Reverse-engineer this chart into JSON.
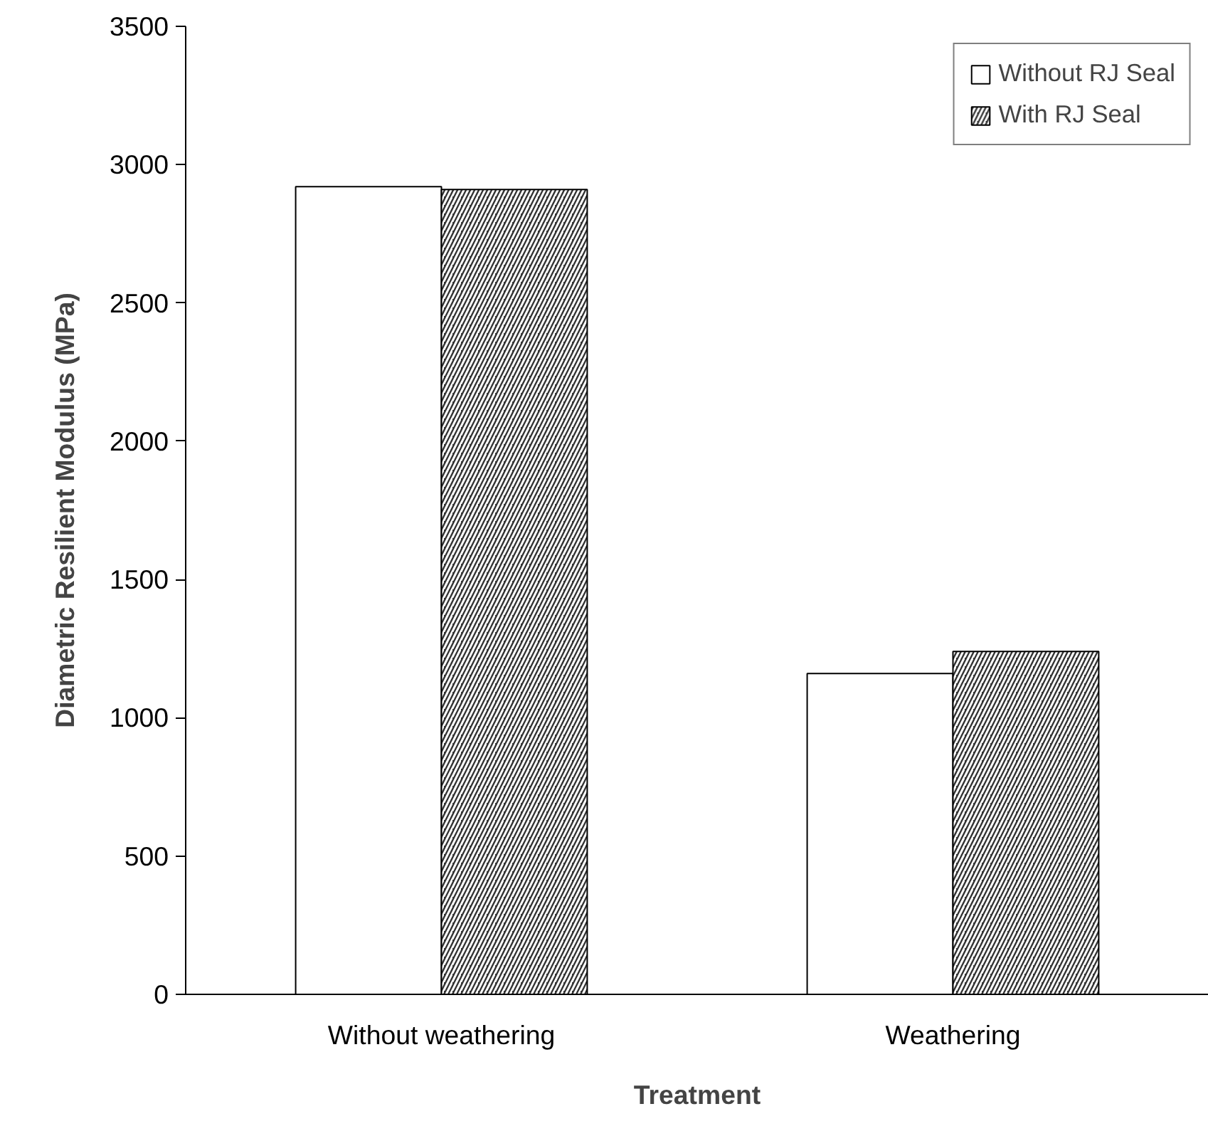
{
  "chart_data": {
    "type": "bar",
    "xlabel": "Treatment",
    "ylabel": "Diametric Resilient Modulus (MPa)",
    "categories": [
      "Without weathering",
      "Weathering"
    ],
    "series": [
      {
        "name": "Without RJ Seal",
        "color": "#ffffff",
        "values": [
          2920,
          1160
        ]
      },
      {
        "name": "With RJ Seal",
        "color": "#333333",
        "values": [
          2910,
          1240
        ]
      }
    ],
    "ylim": [
      0,
      3500
    ],
    "yticks": [
      0,
      500,
      1000,
      1500,
      2000,
      2500,
      3000,
      3500
    ],
    "grid": false,
    "legend": "top right"
  }
}
